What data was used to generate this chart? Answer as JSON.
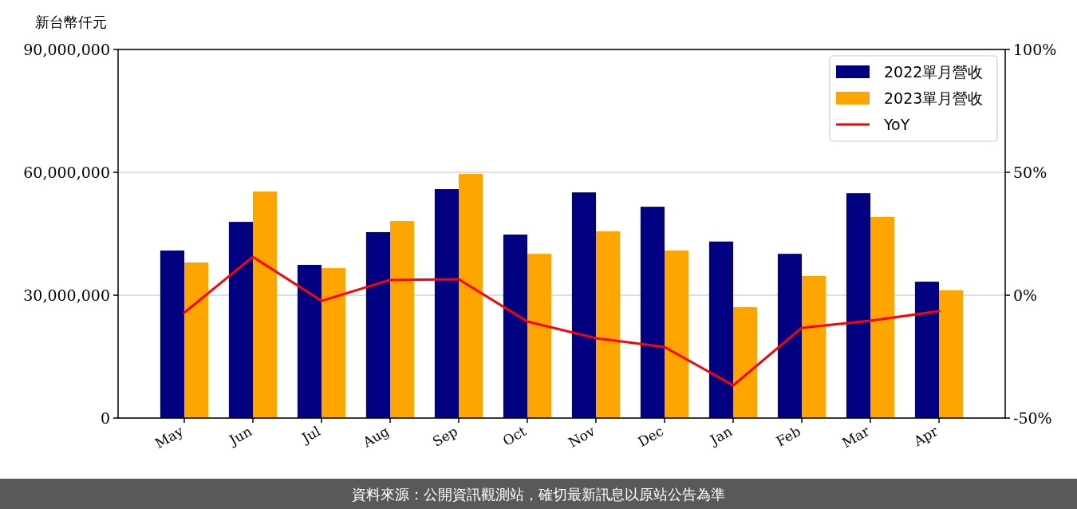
{
  "chart_data": {
    "type": "bar",
    "ylabel": "新台幣仟元",
    "categories": [
      "May",
      "Jun",
      "Jul",
      "Aug",
      "Sep",
      "Oct",
      "Nov",
      "Dec",
      "Jan",
      "Feb",
      "Mar",
      "Apr"
    ],
    "series": [
      {
        "name": "2022單月營收",
        "color": "#000080",
        "values": [
          40900000,
          47900000,
          37400000,
          45400000,
          55900000,
          44800000,
          55100000,
          51600000,
          43100000,
          40100000,
          54900000,
          33300000
        ]
      },
      {
        "name": "2023單月營收",
        "color": "#ffa500",
        "values": [
          38000000,
          55300000,
          36600000,
          48100000,
          59600000,
          40100000,
          45600000,
          40900000,
          27100000,
          34700000,
          49100000,
          31200000
        ]
      },
      {
        "name": "YoY",
        "type": "line",
        "axis": "y2",
        "color": "#ff0000",
        "values": [
          -7.1,
          15.6,
          -2.3,
          6.2,
          6.5,
          -10.7,
          -17.5,
          -21.1,
          -36.7,
          -13.3,
          -10.4,
          -6.5
        ]
      }
    ],
    "ylim": [
      0,
      90000000
    ],
    "yticks": [
      0,
      {
        "value": 30000000,
        "label": "30,000,000"
      },
      {
        "value": 60000000,
        "label": "60,000,000"
      },
      {
        "value": 90000000,
        "label": "90,000,000"
      }
    ],
    "y2lim": [
      -50,
      100
    ],
    "y2ticks": [
      {
        "value": -50,
        "label": "-50%"
      },
      {
        "value": 0,
        "label": "0%"
      },
      {
        "value": 50,
        "label": "50%"
      },
      {
        "value": 100,
        "label": "100%"
      }
    ],
    "grid": "y",
    "legend": "top right",
    "annotations": [
      "資料來源：公開資訊觀測站，確切最新訊息以原站公告為準"
    ]
  }
}
